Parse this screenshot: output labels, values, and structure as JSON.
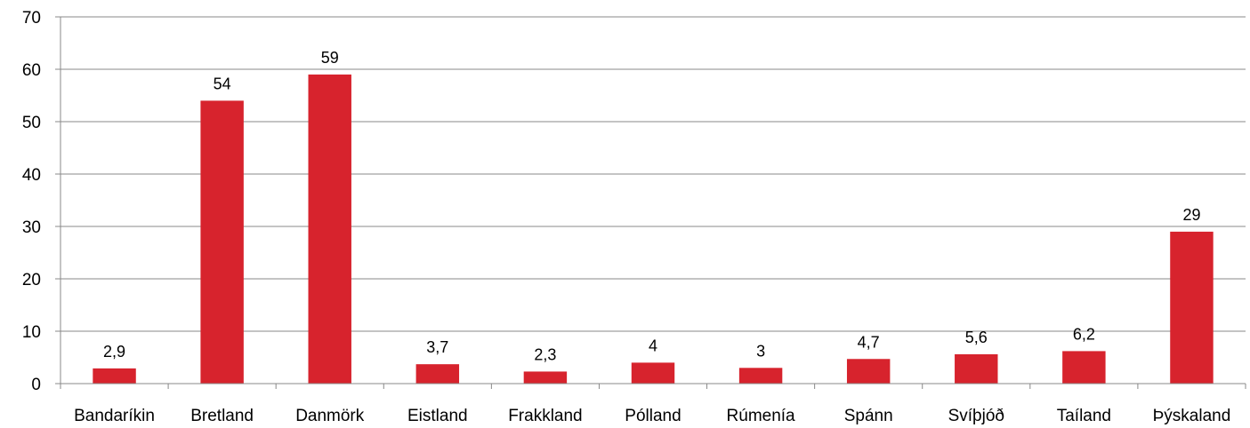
{
  "chart_data": {
    "type": "bar",
    "categories": [
      "Bandaríkin",
      "Bretland",
      "Danmörk",
      "Eistland",
      "Frakkland",
      "Pólland",
      "Rúmenía",
      "Spánn",
      "Svíþjóð",
      "Taíland",
      "Þýskaland"
    ],
    "values": [
      2.9,
      54,
      59,
      3.7,
      2.3,
      4,
      3,
      4.7,
      5.6,
      6.2,
      29
    ],
    "data_labels": [
      "2,9",
      "54",
      "59",
      "3,7",
      "2,3",
      "4",
      "3",
      "4,7",
      "5,6",
      "6,2",
      "29"
    ],
    "ylim": [
      0,
      70
    ],
    "yticks": [
      0,
      10,
      20,
      30,
      40,
      50,
      60,
      70
    ],
    "grid": true,
    "legend": "none",
    "bar_color": "#d7232d",
    "grid_color": "#888888"
  }
}
